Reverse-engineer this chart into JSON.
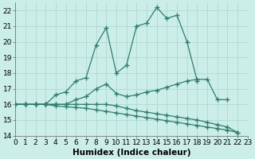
{
  "xlabel": "Humidex (Indice chaleur)",
  "x_values": [
    0,
    1,
    2,
    3,
    4,
    5,
    6,
    7,
    8,
    9,
    10,
    11,
    12,
    13,
    14,
    15,
    16,
    17,
    18,
    19,
    20,
    21,
    22,
    23
  ],
  "series": [
    [
      16.0,
      16.0,
      16.0,
      16.0,
      16.6,
      16.8,
      17.5,
      17.7,
      19.8,
      20.9,
      18.0,
      18.5,
      21.0,
      21.2,
      22.2,
      21.5,
      21.7,
      20.0,
      17.5,
      null,
      null,
      null,
      null,
      null
    ],
    [
      16.0,
      16.0,
      16.0,
      16.0,
      16.0,
      16.0,
      16.3,
      16.5,
      17.0,
      17.3,
      16.7,
      16.5,
      16.6,
      16.8,
      16.9,
      17.1,
      17.3,
      17.5,
      17.6,
      17.6,
      16.3,
      16.3,
      null,
      null
    ],
    [
      16.0,
      16.0,
      16.0,
      16.0,
      15.9,
      15.85,
      15.8,
      15.75,
      15.65,
      15.55,
      15.45,
      15.35,
      15.25,
      15.15,
      15.05,
      14.95,
      14.85,
      14.75,
      14.65,
      14.55,
      14.45,
      14.35,
      14.2,
      null
    ],
    [
      16.0,
      16.0,
      16.0,
      16.0,
      16.0,
      16.0,
      16.0,
      16.0,
      16.0,
      16.0,
      15.9,
      15.75,
      15.6,
      15.5,
      15.4,
      15.3,
      15.2,
      15.1,
      15.0,
      14.85,
      14.7,
      14.55,
      14.2,
      null
    ]
  ],
  "color": "#2e7d6e",
  "marker": "+",
  "markersize": 4,
  "linewidth": 0.9,
  "bg_color": "#cceee8",
  "grid_color": "#aad4cc",
  "xlim": [
    0,
    23
  ],
  "ylim": [
    14,
    22.5
  ],
  "yticks": [
    14,
    15,
    16,
    17,
    18,
    19,
    20,
    21,
    22
  ],
  "xticks": [
    0,
    1,
    2,
    3,
    4,
    5,
    6,
    7,
    8,
    9,
    10,
    11,
    12,
    13,
    14,
    15,
    16,
    17,
    18,
    19,
    20,
    21,
    22,
    23
  ],
  "tick_fontsize": 6.5,
  "xlabel_fontsize": 7.5,
  "xlabel_fontweight": "bold"
}
